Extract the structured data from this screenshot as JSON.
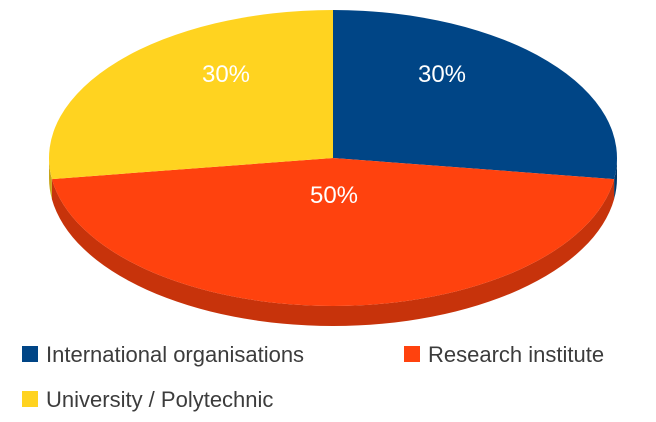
{
  "chart_data": {
    "type": "pie",
    "title": "",
    "categories": [
      "International organisations",
      "Research institute",
      "University / Polytechnic"
    ],
    "values": [
      30,
      50,
      30
    ],
    "labels": [
      "30%",
      "50%",
      "30%"
    ],
    "colors": [
      "#004586",
      "#ff420e",
      "#ffd320"
    ],
    "style": "3d",
    "legend_position": "bottom"
  }
}
